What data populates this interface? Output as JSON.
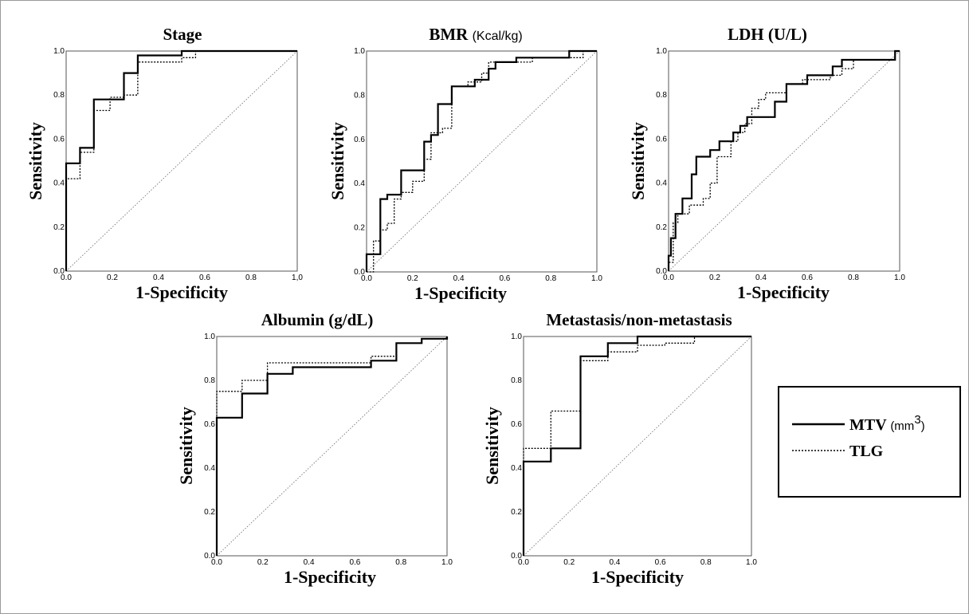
{
  "legend": {
    "items": [
      {
        "label": "MTV",
        "unit": "(mm",
        "unit_sup": "3",
        "unit_close": ")",
        "style": "solid",
        "color": "#000000"
      },
      {
        "label": "TLG",
        "style": "dotted",
        "color": "#000000"
      }
    ]
  },
  "chart_data": [
    {
      "id": "stage",
      "type": "line",
      "title": "Stage",
      "title_unit": "",
      "xlabel": "1-Specificity",
      "ylabel": "Sensitivity",
      "xlim": [
        0,
        1
      ],
      "ylim": [
        0,
        1
      ],
      "x_tick_labels": [
        "0.0",
        "0.2",
        "0.4",
        "0.6",
        "0.8",
        "1,0"
      ],
      "y_tick_labels": [
        "0.0",
        "0.2",
        "0.4",
        "0.6",
        "0.8",
        "1.0"
      ],
      "reference_line": true,
      "series": [
        {
          "name": "MTV",
          "style": "solid",
          "points": [
            [
              0,
              0
            ],
            [
              0,
              0.49
            ],
            [
              0.06,
              0.49
            ],
            [
              0.06,
              0.56
            ],
            [
              0.12,
              0.56
            ],
            [
              0.12,
              0.78
            ],
            [
              0.19,
              0.78
            ],
            [
              0.25,
              0.78
            ],
            [
              0.25,
              0.9
            ],
            [
              0.31,
              0.9
            ],
            [
              0.31,
              0.98
            ],
            [
              0.5,
              0.98
            ],
            [
              0.5,
              1.0
            ],
            [
              1,
              1
            ]
          ]
        },
        {
          "name": "TLG",
          "style": "dotted",
          "points": [
            [
              0,
              0
            ],
            [
              0,
              0.42
            ],
            [
              0.06,
              0.42
            ],
            [
              0.06,
              0.54
            ],
            [
              0.12,
              0.54
            ],
            [
              0.12,
              0.73
            ],
            [
              0.19,
              0.73
            ],
            [
              0.19,
              0.79
            ],
            [
              0.25,
              0.79
            ],
            [
              0.25,
              0.8
            ],
            [
              0.31,
              0.8
            ],
            [
              0.31,
              0.95
            ],
            [
              0.5,
              0.95
            ],
            [
              0.5,
              0.97
            ],
            [
              0.56,
              0.97
            ],
            [
              0.56,
              1.0
            ],
            [
              1,
              1
            ]
          ]
        }
      ]
    },
    {
      "id": "bmr",
      "type": "line",
      "title": "BMR",
      "title_unit": "(Kcal/kg)",
      "xlabel": "1-Specificity",
      "ylabel": "Sensitivity",
      "xlim": [
        0,
        1
      ],
      "ylim": [
        0,
        1
      ],
      "x_tick_labels": [
        "0.0",
        "0.2",
        "0.4",
        "0.6",
        "0.8",
        "1.0"
      ],
      "y_tick_labels": [
        "0.0",
        "0.2",
        "0.4",
        "0.6",
        "0.8",
        "1.0"
      ],
      "reference_line": true,
      "series": [
        {
          "name": "MTV",
          "style": "solid",
          "points": [
            [
              0,
              0
            ],
            [
              0,
              0.08
            ],
            [
              0.06,
              0.08
            ],
            [
              0.06,
              0.33
            ],
            [
              0.09,
              0.33
            ],
            [
              0.09,
              0.35
            ],
            [
              0.15,
              0.35
            ],
            [
              0.15,
              0.46
            ],
            [
              0.25,
              0.46
            ],
            [
              0.25,
              0.59
            ],
            [
              0.28,
              0.59
            ],
            [
              0.28,
              0.62
            ],
            [
              0.31,
              0.62
            ],
            [
              0.31,
              0.76
            ],
            [
              0.37,
              0.76
            ],
            [
              0.37,
              0.84
            ],
            [
              0.47,
              0.84
            ],
            [
              0.47,
              0.87
            ],
            [
              0.53,
              0.87
            ],
            [
              0.53,
              0.92
            ],
            [
              0.56,
              0.92
            ],
            [
              0.56,
              0.95
            ],
            [
              0.65,
              0.95
            ],
            [
              0.65,
              0.97
            ],
            [
              0.88,
              0.97
            ],
            [
              0.88,
              1.0
            ],
            [
              1,
              1
            ]
          ]
        },
        {
          "name": "TLG",
          "style": "dotted",
          "points": [
            [
              0,
              0
            ],
            [
              0,
              0.0
            ],
            [
              0.03,
              0.0
            ],
            [
              0.03,
              0.14
            ],
            [
              0.06,
              0.14
            ],
            [
              0.06,
              0.19
            ],
            [
              0.09,
              0.19
            ],
            [
              0.09,
              0.22
            ],
            [
              0.12,
              0.22
            ],
            [
              0.12,
              0.33
            ],
            [
              0.15,
              0.33
            ],
            [
              0.15,
              0.36
            ],
            [
              0.2,
              0.36
            ],
            [
              0.2,
              0.41
            ],
            [
              0.25,
              0.41
            ],
            [
              0.25,
              0.51
            ],
            [
              0.28,
              0.51
            ],
            [
              0.28,
              0.63
            ],
            [
              0.33,
              0.63
            ],
            [
              0.33,
              0.65
            ],
            [
              0.37,
              0.65
            ],
            [
              0.37,
              0.84
            ],
            [
              0.44,
              0.84
            ],
            [
              0.44,
              0.86
            ],
            [
              0.5,
              0.86
            ],
            [
              0.5,
              0.9
            ],
            [
              0.53,
              0.9
            ],
            [
              0.53,
              0.95
            ],
            [
              0.72,
              0.95
            ],
            [
              0.72,
              0.97
            ],
            [
              0.94,
              0.97
            ],
            [
              0.94,
              1.0
            ],
            [
              1,
              1
            ]
          ]
        }
      ]
    },
    {
      "id": "ldh",
      "type": "line",
      "title": "LDH",
      "title_unit": "(U/L)",
      "xlabel": "1-Specificity",
      "ylabel": "Sensitivity",
      "xlim": [
        0,
        1
      ],
      "ylim": [
        0,
        1
      ],
      "x_tick_labels": [
        "0.0",
        "0.2",
        "0.4",
        "0.6",
        "0.8",
        "1.0"
      ],
      "y_tick_labels": [
        "0.0",
        "0.2",
        "0.4",
        "0.6",
        "0.8",
        "1.0"
      ],
      "reference_line": true,
      "series": [
        {
          "name": "MTV",
          "style": "solid",
          "points": [
            [
              0,
              0
            ],
            [
              0,
              0.07
            ],
            [
              0.01,
              0.07
            ],
            [
              0.01,
              0.15
            ],
            [
              0.03,
              0.15
            ],
            [
              0.03,
              0.26
            ],
            [
              0.06,
              0.26
            ],
            [
              0.06,
              0.33
            ],
            [
              0.1,
              0.33
            ],
            [
              0.1,
              0.44
            ],
            [
              0.12,
              0.44
            ],
            [
              0.12,
              0.52
            ],
            [
              0.18,
              0.52
            ],
            [
              0.18,
              0.55
            ],
            [
              0.22,
              0.55
            ],
            [
              0.22,
              0.59
            ],
            [
              0.28,
              0.59
            ],
            [
              0.28,
              0.63
            ],
            [
              0.31,
              0.63
            ],
            [
              0.31,
              0.66
            ],
            [
              0.34,
              0.66
            ],
            [
              0.34,
              0.7
            ],
            [
              0.46,
              0.7
            ],
            [
              0.46,
              0.77
            ],
            [
              0.51,
              0.77
            ],
            [
              0.51,
              0.85
            ],
            [
              0.6,
              0.85
            ],
            [
              0.6,
              0.89
            ],
            [
              0.71,
              0.89
            ],
            [
              0.71,
              0.93
            ],
            [
              0.75,
              0.93
            ],
            [
              0.75,
              0.96
            ],
            [
              0.98,
              0.96
            ],
            [
              0.98,
              1.0
            ],
            [
              1,
              1
            ]
          ]
        },
        {
          "name": "TLG",
          "style": "dotted",
          "points": [
            [
              0,
              0
            ],
            [
              0,
              0.04
            ],
            [
              0.02,
              0.04
            ],
            [
              0.02,
              0.22
            ],
            [
              0.04,
              0.22
            ],
            [
              0.04,
              0.26
            ],
            [
              0.09,
              0.26
            ],
            [
              0.09,
              0.3
            ],
            [
              0.15,
              0.3
            ],
            [
              0.15,
              0.33
            ],
            [
              0.18,
              0.33
            ],
            [
              0.18,
              0.4
            ],
            [
              0.21,
              0.4
            ],
            [
              0.21,
              0.52
            ],
            [
              0.27,
              0.52
            ],
            [
              0.27,
              0.59
            ],
            [
              0.3,
              0.59
            ],
            [
              0.3,
              0.63
            ],
            [
              0.33,
              0.63
            ],
            [
              0.33,
              0.67
            ],
            [
              0.36,
              0.67
            ],
            [
              0.36,
              0.74
            ],
            [
              0.39,
              0.74
            ],
            [
              0.39,
              0.78
            ],
            [
              0.42,
              0.78
            ],
            [
              0.42,
              0.81
            ],
            [
              0.51,
              0.81
            ],
            [
              0.51,
              0.85
            ],
            [
              0.58,
              0.85
            ],
            [
              0.58,
              0.87
            ],
            [
              0.7,
              0.87
            ],
            [
              0.7,
              0.89
            ],
            [
              0.75,
              0.89
            ],
            [
              0.75,
              0.92
            ],
            [
              0.8,
              0.92
            ],
            [
              0.8,
              0.96
            ],
            [
              0.98,
              0.96
            ],
            [
              0.98,
              1.0
            ],
            [
              1,
              1
            ]
          ]
        }
      ]
    },
    {
      "id": "albumin",
      "type": "line",
      "title": "Albumin (g/dL)",
      "title_unit": "",
      "xlabel": "1-Specificity",
      "ylabel": "Sensitivity",
      "xlim": [
        0,
        1
      ],
      "ylim": [
        0,
        1
      ],
      "x_tick_labels": [
        "0.0",
        "0.2",
        "0.4",
        "0.6",
        "0.8",
        "1.0"
      ],
      "y_tick_labels": [
        "0.0",
        "0.2",
        "0.4",
        "0.6",
        "0.8",
        "1.0"
      ],
      "reference_line": true,
      "series": [
        {
          "name": "MTV",
          "style": "solid",
          "points": [
            [
              0,
              0
            ],
            [
              0,
              0.63
            ],
            [
              0.11,
              0.63
            ],
            [
              0.11,
              0.74
            ],
            [
              0.22,
              0.74
            ],
            [
              0.22,
              0.83
            ],
            [
              0.33,
              0.83
            ],
            [
              0.33,
              0.86
            ],
            [
              0.67,
              0.86
            ],
            [
              0.67,
              0.89
            ],
            [
              0.78,
              0.89
            ],
            [
              0.78,
              0.97
            ],
            [
              0.89,
              0.97
            ],
            [
              0.89,
              0.99
            ],
            [
              1,
              0.99
            ],
            [
              1,
              1.0
            ]
          ]
        },
        {
          "name": "TLG",
          "style": "dotted",
          "points": [
            [
              0,
              0
            ],
            [
              0,
              0.75
            ],
            [
              0.11,
              0.75
            ],
            [
              0.11,
              0.8
            ],
            [
              0.22,
              0.8
            ],
            [
              0.22,
              0.88
            ],
            [
              0.67,
              0.88
            ],
            [
              0.67,
              0.91
            ],
            [
              0.78,
              0.91
            ],
            [
              0.78,
              0.97
            ],
            [
              0.89,
              0.97
            ],
            [
              0.89,
              0.99
            ],
            [
              1,
              0.99
            ],
            [
              1,
              1.0
            ]
          ]
        }
      ]
    },
    {
      "id": "metastasis",
      "type": "line",
      "title": "Metastasis/non-metastasis",
      "title_unit": "",
      "xlabel": "1-Specificity",
      "ylabel": "Sensitivity",
      "xlim": [
        0,
        1
      ],
      "ylim": [
        0,
        1
      ],
      "x_tick_labels": [
        "0.0",
        "0.2",
        "0.4",
        "0.6",
        "0.8",
        "1.0"
      ],
      "y_tick_labels": [
        "0.0",
        "0.2",
        "0.4",
        "0.6",
        "0.8",
        "1.0"
      ],
      "reference_line": true,
      "series": [
        {
          "name": "MTV",
          "style": "solid",
          "points": [
            [
              0,
              0
            ],
            [
              0,
              0.43
            ],
            [
              0.12,
              0.43
            ],
            [
              0.12,
              0.49
            ],
            [
              0.25,
              0.49
            ],
            [
              0.25,
              0.91
            ],
            [
              0.37,
              0.91
            ],
            [
              0.37,
              0.97
            ],
            [
              0.5,
              0.97
            ],
            [
              0.5,
              1.0
            ],
            [
              1,
              1
            ]
          ]
        },
        {
          "name": "TLG",
          "style": "dotted",
          "points": [
            [
              0,
              0
            ],
            [
              0,
              0.49
            ],
            [
              0.12,
              0.49
            ],
            [
              0.12,
              0.66
            ],
            [
              0.25,
              0.66
            ],
            [
              0.25,
              0.89
            ],
            [
              0.37,
              0.89
            ],
            [
              0.37,
              0.93
            ],
            [
              0.5,
              0.93
            ],
            [
              0.5,
              0.96
            ],
            [
              0.62,
              0.96
            ],
            [
              0.62,
              0.97
            ],
            [
              0.75,
              0.97
            ],
            [
              0.75,
              1.0
            ],
            [
              1,
              1
            ]
          ]
        }
      ]
    }
  ]
}
